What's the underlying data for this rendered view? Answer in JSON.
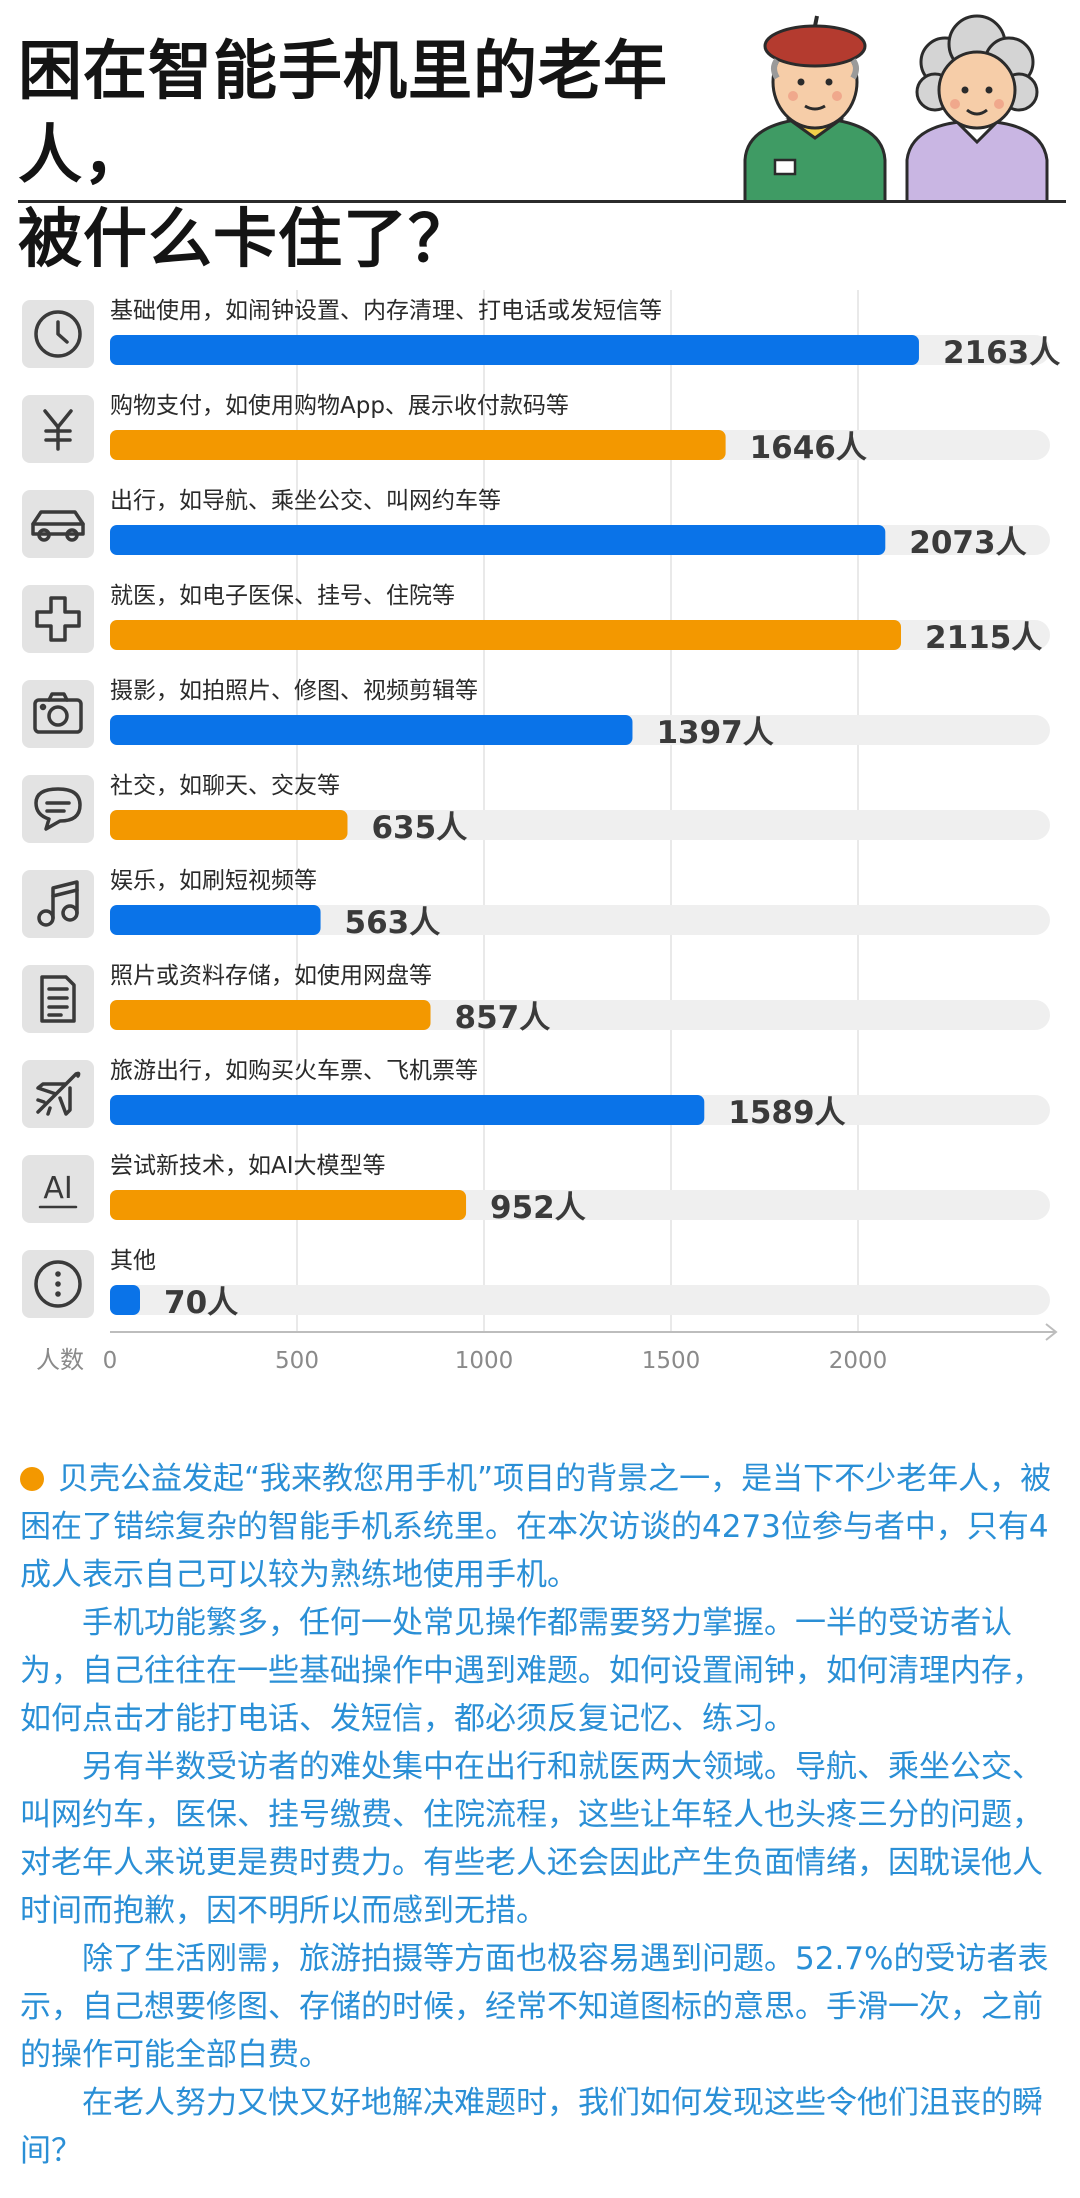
{
  "header": {
    "title_line1": "困在智能手机里的老年人，",
    "title_line2": "被什么卡住了？"
  },
  "colors": {
    "blue": "#0a73e8",
    "orange": "#f39800",
    "track": "#efefef",
    "icon_box": "#e3e3e3",
    "article_text": "#2a8fd6"
  },
  "chart_data": {
    "type": "bar",
    "orientation": "horizontal",
    "categories": [
      "基础使用，如闹钟设置、内存清理、打电话或发短信等",
      "购物支付，如使用购物App、展示收付款码等",
      "出行，如导航、乘坐公交、叫网约车等",
      "就医，如电子医保、挂号、住院等",
      "摄影，如拍照片、修图、视频剪辑等",
      "社交，如聊天、交友等",
      "娱乐，如刷短视频等",
      "照片或资料存储，如使用网盘等",
      "旅游出行，如购买火车票、飞机票等",
      "尝试新技术，如AI大模型等",
      "其他"
    ],
    "values": [
      2163,
      1646,
      2073,
      2115,
      1397,
      635,
      563,
      857,
      1589,
      952,
      70
    ],
    "value_labels": [
      "2163人",
      "1646人",
      "2073人",
      "2115人",
      "1397人",
      "635人",
      "563人",
      "857人",
      "1589人",
      "952人",
      "70人"
    ],
    "bar_colors": [
      "blue",
      "orange",
      "blue",
      "orange",
      "blue",
      "orange",
      "blue",
      "orange",
      "blue",
      "orange",
      "blue"
    ],
    "icons": [
      "clock-icon",
      "yen-icon",
      "car-icon",
      "medical-cross-icon",
      "camera-icon",
      "chat-bubble-icon",
      "music-note-icon",
      "document-icon",
      "airplane-icon",
      "ai-icon",
      "more-dots-icon"
    ],
    "ai_icon_text": "AI",
    "xlabel": "人数",
    "xticks": [
      0,
      500,
      1000,
      1500,
      2000
    ],
    "xlim": [
      0,
      2500
    ],
    "grid": true
  },
  "article": {
    "paragraphs": [
      "贝壳公益发起“我来教您用手机”项目的背景之一，是当下不少老年人，被困在了错综复杂的智能手机系统里。在本次访谈的4273位参与者中，只有4成人表示自己可以较为熟练地使用手机。",
      "手机功能繁多，任何一处常见操作都需要努力掌握。一半的受访者认为，自己往往在一些基础操作中遇到难题。如何设置闹钟，如何清理内存，如何点击才能打电话、发短信，都必须反复记忆、练习。",
      "另有半数受访者的难处集中在出行和就医两大领域。导航、乘坐公交、叫网约车，医保、挂号缴费、住院流程，这些让年轻人也头疼三分的问题，对老年人来说更是费时费力。有些老人还会因此产生负面情绪，因耽误他人时间而抱歉，因不明所以而感到无措。",
      "除了生活刚需，旅游拍摄等方面也极容易遇到问题。52.7%的受访者表示，自己想要修图、存储的时候，经常不知道图标的意思。手滑一次，之前的操作可能全部白费。",
      "在老人努力又快又好地解决难题时，我们如何发现这些令他们沮丧的瞬间？"
    ]
  }
}
